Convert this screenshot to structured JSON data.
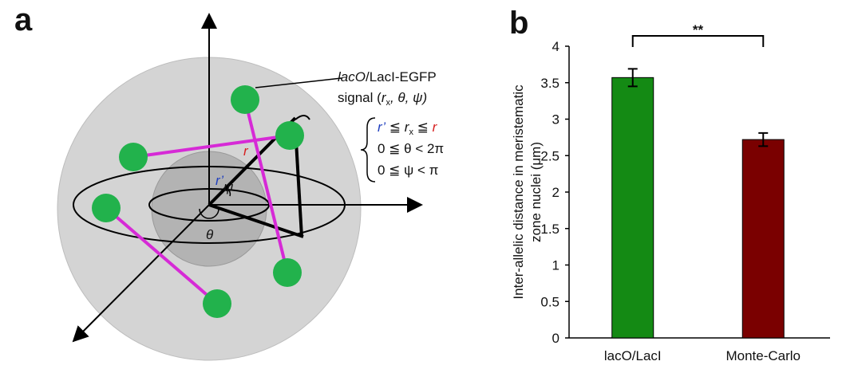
{
  "panel_a": {
    "label": "a",
    "signal_title": {
      "italic": "lacO",
      "rest": "/LacI-EGFP"
    },
    "signal_coords": {
      "open": "signal (",
      "r": "r",
      "sub": "x",
      "rest": ", θ, ψ)"
    },
    "constraints": [
      {
        "r_inner": "r’",
        "le1": " ≦ ",
        "r": "r",
        "sub": "x",
        "le2": " ≦ ",
        "r_outer": "r"
      },
      "0 ≦ θ < 2π",
      "0 ≦ ψ < π"
    ],
    "r_label": "r",
    "r_inner_label": "r’",
    "psi_label": "ψ",
    "theta_label": "θ"
  },
  "chart_data": {
    "type": "bar",
    "panel_label": "b",
    "ylabel": [
      "Inter-allelic distance in meristematic",
      "zone nuclei (μm)"
    ],
    "categories": [
      "lacO/LacI",
      "Monte-Carlo"
    ],
    "series": [
      {
        "values": [
          3.57,
          2.72
        ],
        "errors": [
          0.12,
          0.09
        ],
        "colors": [
          "#148a14",
          "#7a0000"
        ]
      }
    ],
    "ylim": [
      0,
      4
    ],
    "yticks": [
      0,
      0.5,
      1,
      1.5,
      2,
      2.5,
      3,
      3.5,
      4
    ],
    "significance": "**"
  }
}
